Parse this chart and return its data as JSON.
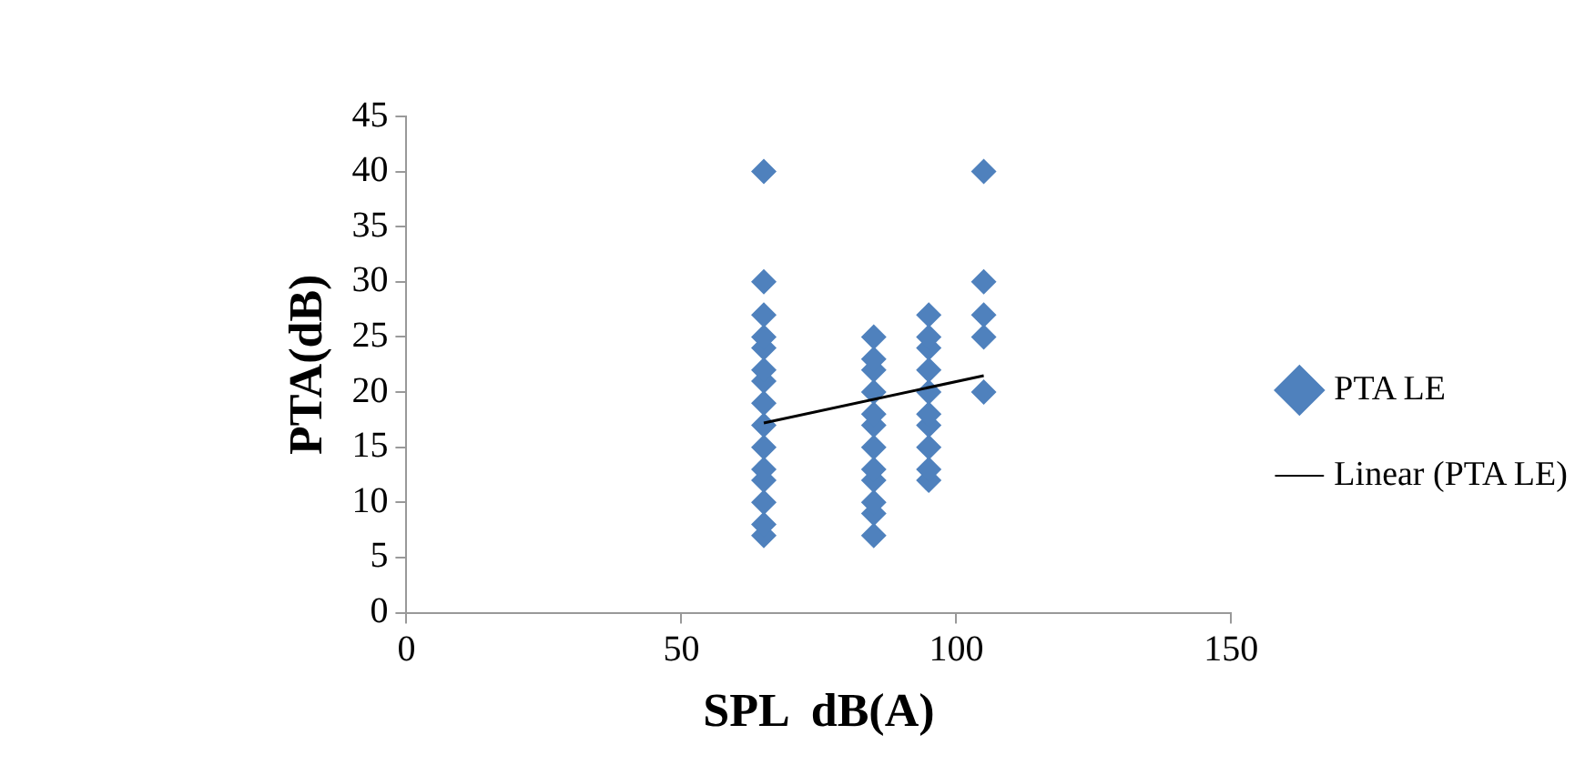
{
  "chart_data": {
    "type": "scatter",
    "xlabel": "SPL  dB(A)",
    "ylabel": "PTA(dB)",
    "xlim": [
      0,
      150
    ],
    "xticks": [
      0,
      50,
      100,
      150
    ],
    "ylim": [
      0,
      45
    ],
    "yticks": [
      0,
      5,
      10,
      15,
      20,
      25,
      30,
      35,
      40,
      45
    ],
    "grid": false,
    "legend": "right",
    "marker": "diamond",
    "series": [
      {
        "name": "PTA LE",
        "color": "#4f81bd",
        "x": [
          65,
          65,
          65,
          65,
          65,
          65,
          65,
          65,
          65,
          65,
          65,
          65,
          65,
          65,
          65,
          85,
          85,
          85,
          85,
          85,
          85,
          85,
          85,
          85,
          85,
          85,
          85,
          95,
          95,
          95,
          95,
          95,
          95,
          95,
          95,
          95,
          95,
          105,
          105,
          105,
          105,
          105
        ],
        "values": [
          7,
          8,
          10,
          12,
          13,
          15,
          17,
          19,
          21,
          22,
          24,
          25,
          27,
          30,
          40,
          7,
          9,
          10,
          12,
          13,
          15,
          17,
          18,
          20,
          22,
          23,
          25,
          12,
          13,
          15,
          17,
          18,
          20,
          22,
          24,
          25,
          27,
          20,
          25,
          27,
          30,
          40
        ]
      },
      {
        "name": "Linear (PTA LE)",
        "type": "line",
        "color": "#000000",
        "marker": "none",
        "x": [
          65,
          105
        ],
        "values": [
          17.2,
          21.5
        ]
      }
    ]
  }
}
